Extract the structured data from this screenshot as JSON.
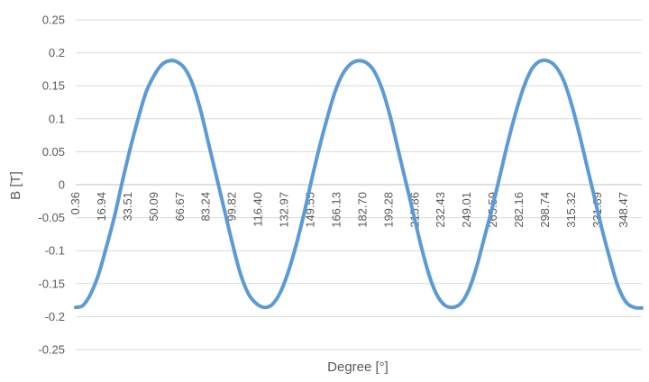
{
  "chart_data": {
    "type": "line",
    "title": "",
    "xlabel": "Degree [°]",
    "ylabel": "B [T]",
    "ylim": [
      -0.25,
      0.25
    ],
    "xlim": [
      0.36,
      360
    ],
    "grid": true,
    "legend": "none",
    "y_ticks": [
      "0.25",
      "0.2",
      "0.15",
      "0.1",
      "0.05",
      "0",
      "-0.05",
      "-0.1",
      "-0.15",
      "-0.2",
      "-0.25"
    ],
    "x_tick_labels": [
      "0.36",
      "16.94",
      "33.51",
      "50.09",
      "66.67",
      "83.24",
      "99.82",
      "116.40",
      "132.97",
      "149.55",
      "166.13",
      "182.70",
      "199.28",
      "215.86",
      "232.43",
      "249.01",
      "265.59",
      "282.16",
      "298.74",
      "315.32",
      "331.89",
      "348.47"
    ],
    "series": [
      {
        "color": "#5b9bd5",
        "x": [
          0.36,
          5,
          10,
          15,
          20,
          25,
          30,
          35,
          40,
          45,
          50,
          55,
          60,
          65,
          70,
          75,
          80,
          85,
          90,
          95,
          100,
          105,
          110,
          115,
          120,
          125,
          130,
          135,
          140,
          145,
          150,
          155,
          160,
          165,
          170,
          175,
          180,
          185,
          190,
          195,
          200,
          205,
          210,
          215,
          220,
          225,
          230,
          235,
          240,
          245,
          250,
          255,
          260,
          265,
          270,
          275,
          280,
          285,
          290,
          295,
          300,
          305,
          310,
          315,
          320,
          325,
          330,
          335,
          340,
          345,
          350,
          355,
          360
        ],
        "y": [
          -0.186,
          -0.183,
          -0.165,
          -0.135,
          -0.093,
          -0.048,
          0.005,
          0.055,
          0.1,
          0.14,
          0.165,
          0.182,
          0.188,
          0.186,
          0.175,
          0.15,
          0.11,
          0.06,
          0.01,
          -0.04,
          -0.09,
          -0.135,
          -0.165,
          -0.18,
          -0.186,
          -0.182,
          -0.165,
          -0.135,
          -0.095,
          -0.048,
          0.005,
          0.055,
          0.1,
          0.14,
          0.168,
          0.183,
          0.188,
          0.185,
          0.172,
          0.145,
          0.105,
          0.055,
          0.005,
          -0.045,
          -0.095,
          -0.138,
          -0.168,
          -0.183,
          -0.186,
          -0.18,
          -0.16,
          -0.125,
          -0.08,
          -0.035,
          0.015,
          0.065,
          0.11,
          0.148,
          0.175,
          0.187,
          0.188,
          0.18,
          0.16,
          0.125,
          0.08,
          0.03,
          -0.02,
          -0.07,
          -0.115,
          -0.155,
          -0.178,
          -0.186,
          -0.187
        ]
      }
    ]
  }
}
